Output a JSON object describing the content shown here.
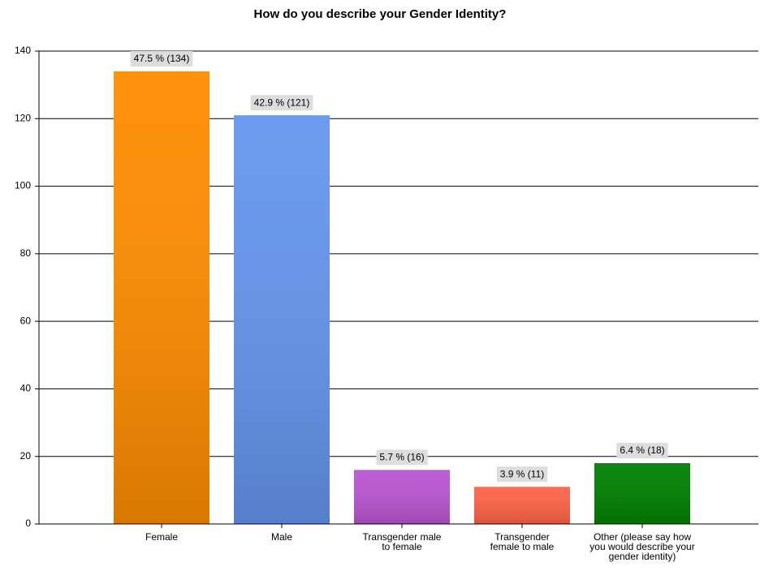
{
  "chart_data": {
    "type": "bar",
    "title": "How do you describe your Gender Identity?",
    "categories": [
      "Female",
      "Male",
      "Transgender male to female",
      "Transgender female to male",
      "Other (please say how you would describe your gender identity)"
    ],
    "values": [
      134,
      121,
      16,
      11,
      18
    ],
    "value_labels": [
      "47.5 % (134)",
      "42.9 % (121)",
      "5.7 % (16)",
      "3.9 % (11)",
      "6.4 % (18)"
    ],
    "colors": [
      "#ff8c00",
      "#6495ed",
      "#ba55d3",
      "#ff6347",
      "#008000"
    ],
    "ylim": [
      0,
      140
    ],
    "yticks": [
      0,
      20,
      40,
      60,
      80,
      100,
      120,
      140
    ],
    "grid": true
  }
}
